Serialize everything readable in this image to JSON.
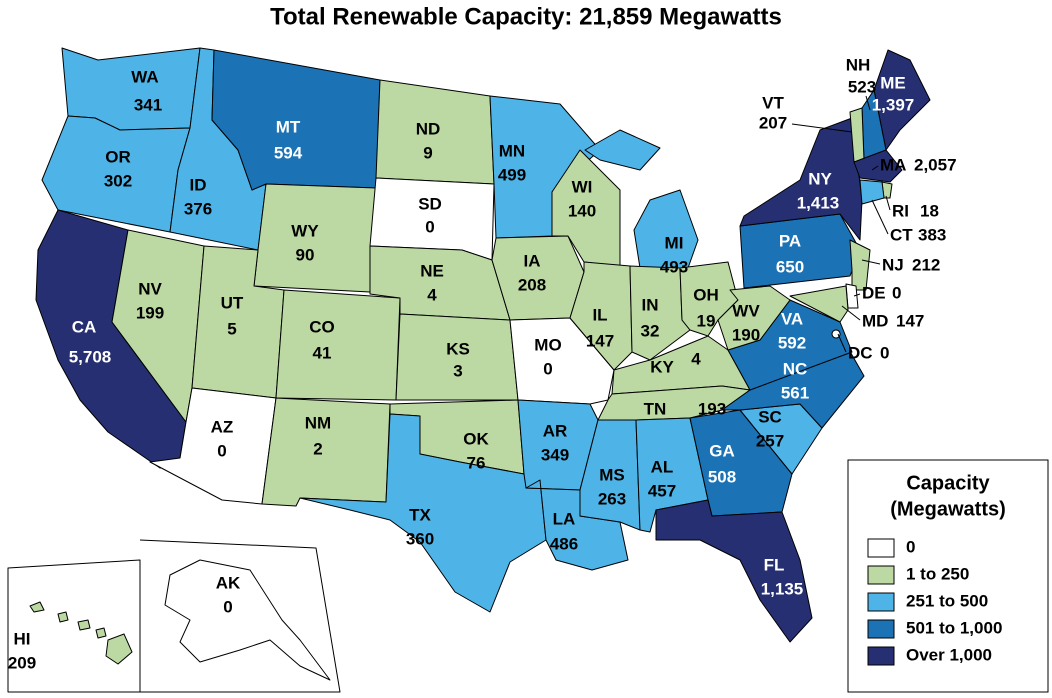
{
  "chart_data": {
    "type": "choropleth",
    "title": "Total Renewable Capacity: 21,859 Megawatts",
    "categories": [
      "WA",
      "OR",
      "CA",
      "NV",
      "ID",
      "MT",
      "WY",
      "UT",
      "AZ",
      "CO",
      "NM",
      "ND",
      "SD",
      "NE",
      "KS",
      "OK",
      "TX",
      "MN",
      "IA",
      "MO",
      "AR",
      "LA",
      "WI",
      "IL",
      "MI",
      "IN",
      "OH",
      "KY",
      "TN",
      "MS",
      "AL",
      "GA",
      "SC",
      "NC",
      "VA",
      "WV",
      "PA",
      "NY",
      "FL",
      "ME",
      "NH",
      "VT",
      "MA",
      "RI",
      "CT",
      "NJ",
      "DE",
      "MD",
      "DC",
      "AK",
      "HI"
    ],
    "values": [
      341,
      302,
      5708,
      199,
      376,
      594,
      90,
      5,
      0,
      41,
      2,
      9,
      0,
      4,
      3,
      76,
      360,
      499,
      208,
      0,
      349,
      486,
      140,
      147,
      493,
      32,
      19,
      4,
      193,
      263,
      457,
      508,
      257,
      561,
      592,
      190,
      650,
      1413,
      1135,
      1397,
      523,
      207,
      2057,
      18,
      383,
      212,
      0,
      147,
      0,
      0,
      209
    ],
    "value_labels": [
      "341",
      "302",
      "5,708",
      "199",
      "376",
      "594",
      "90",
      "5",
      "0",
      "41",
      "2",
      "9",
      "0",
      "4",
      "3",
      "76",
      "360",
      "499",
      "208",
      "0",
      "349",
      "486",
      "140",
      "147",
      "493",
      "32",
      "19",
      "4",
      "193",
      "263",
      "457",
      "508",
      "257",
      "561",
      "592",
      "190",
      "650",
      "1,413",
      "1,135",
      "1,397",
      "523",
      "207",
      "2,057",
      "18",
      "383",
      "212",
      "0",
      "147",
      "0",
      "0",
      "209"
    ],
    "legend": {
      "title": [
        "Capacity",
        "(Megawatts)"
      ],
      "items": [
        {
          "label": "0",
          "color": "#ffffff",
          "text_color": "#000000",
          "max": 0
        },
        {
          "label": "1 to 250",
          "color": "#bcd9a3",
          "text_color": "#000000",
          "max": 250
        },
        {
          "label": "251 to 500",
          "color": "#4eb3e6",
          "text_color": "#000000",
          "max": 500
        },
        {
          "label": "501 to 1,000",
          "color": "#1b72b5",
          "text_color": "#ffffff",
          "max": 1000
        },
        {
          "label": "Over 1,000",
          "color": "#262f72",
          "text_color": "#ffffff",
          "max": null
        }
      ]
    }
  }
}
